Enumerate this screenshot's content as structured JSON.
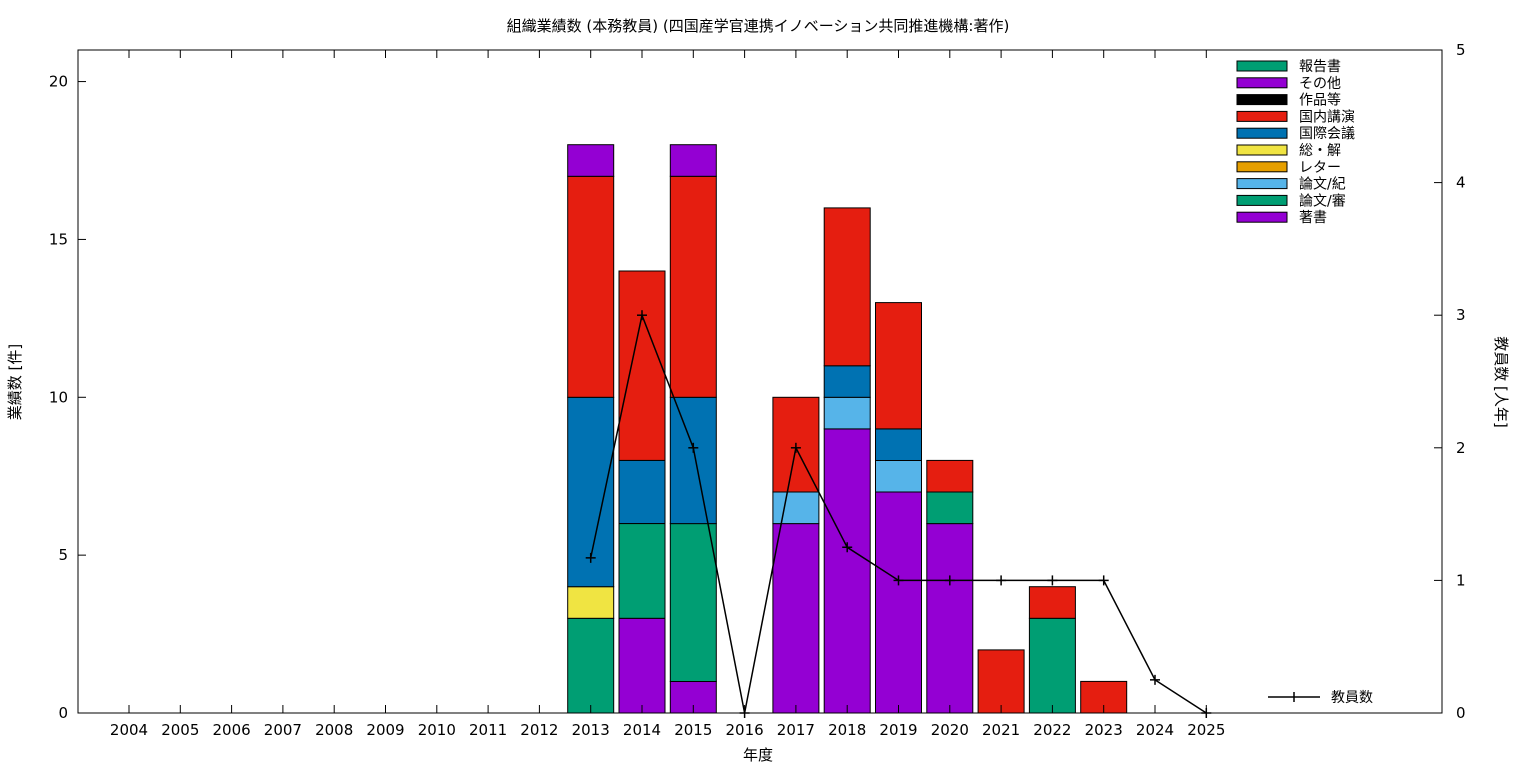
{
  "chart_data": {
    "type": "bar",
    "title": "組織業績数 (本務教員) (四国産学官連携イノベーション共同推進機構:著作)",
    "xlabel": "年度",
    "ylabel": "業績数 [件]",
    "y2label": "教員数 [人年]",
    "ylim": [
      0,
      21
    ],
    "y2lim": [
      0,
      5
    ],
    "yticks": [
      0,
      5,
      10,
      15,
      20
    ],
    "y2ticks": [
      0,
      1,
      2,
      3,
      4,
      5
    ],
    "grid": false,
    "legend_position": "top-right",
    "categories": [
      "2004",
      "2005",
      "2006",
      "2007",
      "2008",
      "2009",
      "2010",
      "2011",
      "2012",
      "2013",
      "2014",
      "2015",
      "2016",
      "2017",
      "2018",
      "2019",
      "2020",
      "2021",
      "2022",
      "2023",
      "2024",
      "2025"
    ],
    "stack_order": [
      "著書",
      "論文/審",
      "論文/紀",
      "レター",
      "総・解",
      "国際会議",
      "国内講演",
      "作品等",
      "その他",
      "報告書"
    ],
    "series": [
      {
        "name": "報告書",
        "color": "#009e73",
        "values": [
          0,
          0,
          0,
          0,
          0,
          0,
          0,
          0,
          0,
          0,
          0,
          0,
          0,
          0,
          0,
          0,
          0,
          0,
          0,
          0,
          0,
          0
        ]
      },
      {
        "name": "その他",
        "color": "#9400d3",
        "values": [
          0,
          0,
          0,
          0,
          0,
          0,
          0,
          0,
          0,
          1,
          0,
          1,
          0,
          0,
          0,
          0,
          0,
          0,
          0,
          0,
          0,
          0
        ]
      },
      {
        "name": "作品等",
        "color": "#000000",
        "values": [
          0,
          0,
          0,
          0,
          0,
          0,
          0,
          0,
          0,
          0,
          0,
          0,
          0,
          0,
          0,
          0,
          0,
          0,
          0,
          0,
          0,
          0
        ]
      },
      {
        "name": "国内講演",
        "color": "#e51e10",
        "values": [
          0,
          0,
          0,
          0,
          0,
          0,
          0,
          0,
          0,
          7,
          6,
          7,
          0,
          3,
          5,
          4,
          1,
          2,
          1,
          1,
          0,
          0
        ]
      },
      {
        "name": "国際会議",
        "color": "#0072b2",
        "values": [
          0,
          0,
          0,
          0,
          0,
          0,
          0,
          0,
          0,
          6,
          2,
          4,
          0,
          0,
          1,
          1,
          0,
          0,
          0,
          0,
          0,
          0
        ]
      },
      {
        "name": "総・解",
        "color": "#f0e442",
        "values": [
          0,
          0,
          0,
          0,
          0,
          0,
          0,
          0,
          0,
          1,
          0,
          0,
          0,
          0,
          0,
          0,
          0,
          0,
          0,
          0,
          0,
          0
        ]
      },
      {
        "name": "レター",
        "color": "#e69f00",
        "values": [
          0,
          0,
          0,
          0,
          0,
          0,
          0,
          0,
          0,
          0,
          0,
          0,
          0,
          0,
          0,
          0,
          0,
          0,
          0,
          0,
          0,
          0
        ]
      },
      {
        "name": "論文/紀",
        "color": "#56b4e9",
        "values": [
          0,
          0,
          0,
          0,
          0,
          0,
          0,
          0,
          0,
          0,
          0,
          0,
          0,
          1,
          1,
          1,
          0,
          0,
          0,
          0,
          0,
          0
        ]
      },
      {
        "name": "論文/審",
        "color": "#009e73",
        "values": [
          0,
          0,
          0,
          0,
          0,
          0,
          0,
          0,
          0,
          3,
          3,
          5,
          0,
          0,
          0,
          0,
          1,
          0,
          3,
          0,
          0,
          0
        ]
      },
      {
        "name": "著書",
        "color": "#9400d3",
        "values": [
          0,
          0,
          0,
          0,
          0,
          0,
          0,
          0,
          0,
          0,
          3,
          1,
          0,
          6,
          9,
          7,
          6,
          0,
          0,
          0,
          0,
          0
        ]
      }
    ],
    "line_series": {
      "name": "教員数",
      "axis": "y2",
      "color": "#000000",
      "x": [
        "2013",
        "2014",
        "2015",
        "2016",
        "2017",
        "2018",
        "2019",
        "2020",
        "2021",
        "2022",
        "2023",
        "2024",
        "2025"
      ],
      "values": [
        1.17,
        3.0,
        2.0,
        0,
        2.0,
        1.25,
        1.0,
        1.0,
        1.0,
        1.0,
        1.0,
        0.25,
        0
      ]
    }
  }
}
